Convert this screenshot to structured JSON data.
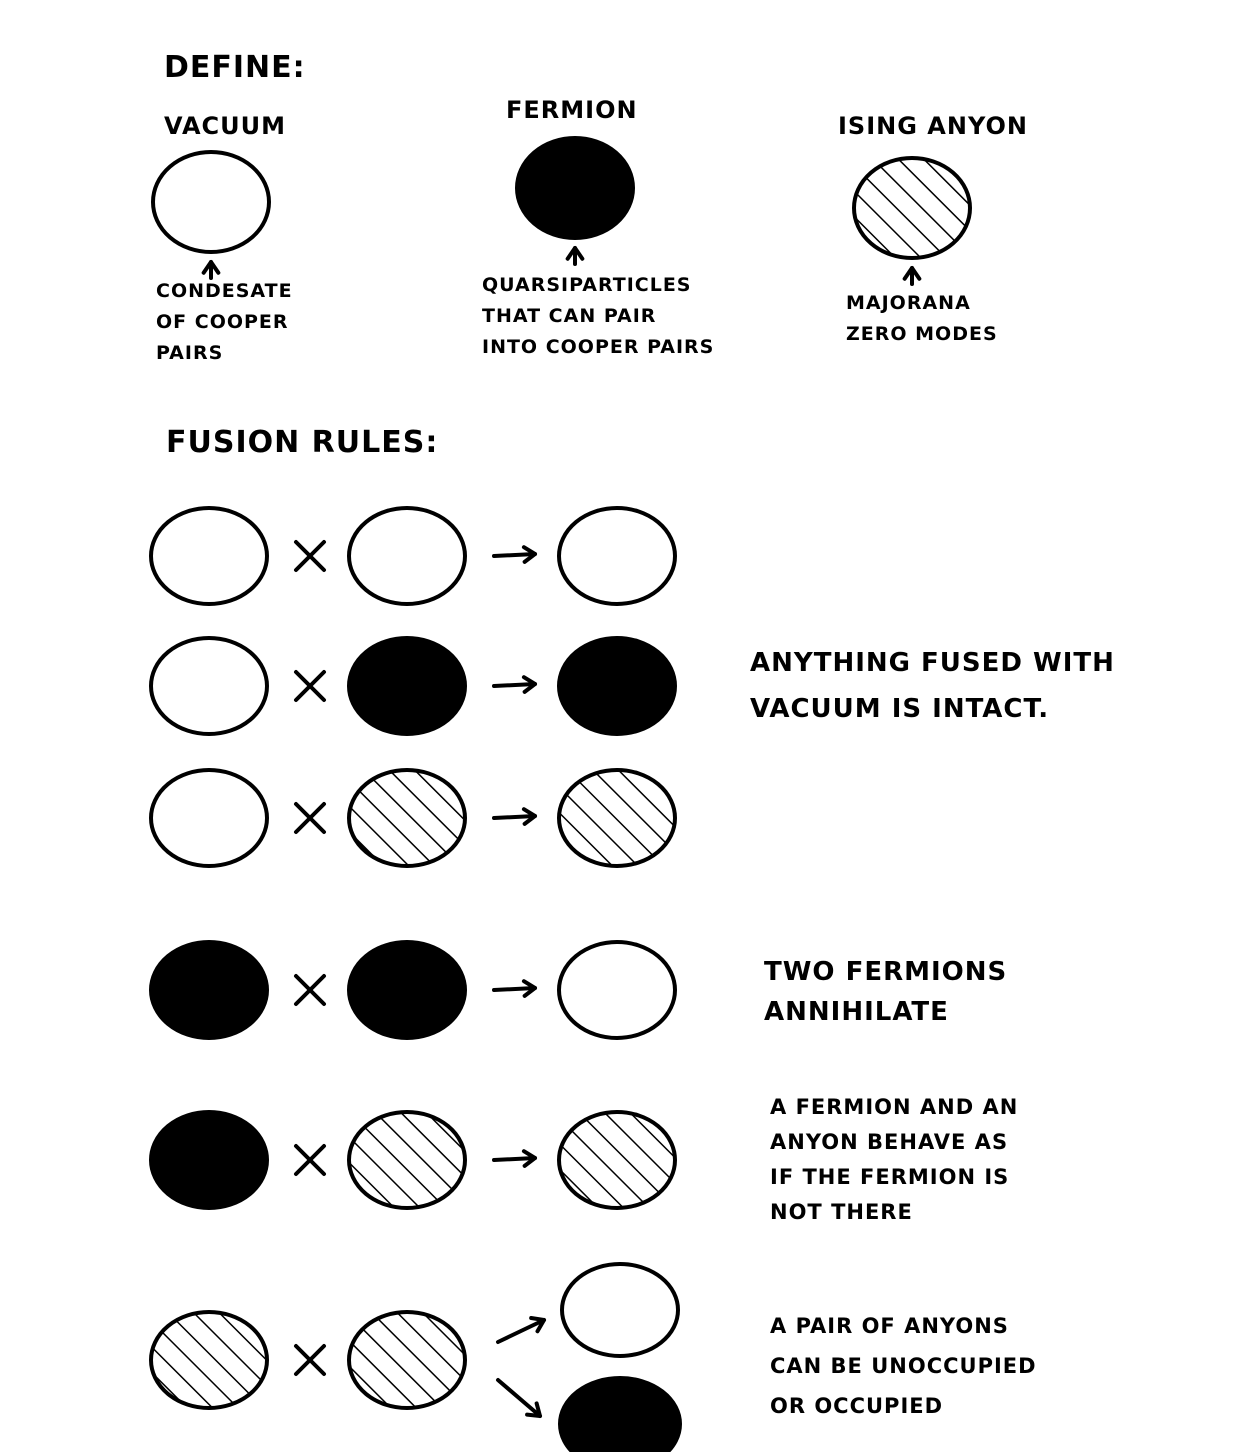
{
  "define": {
    "heading": "DEFINE:",
    "particles": [
      {
        "name": "VACUUM",
        "style": "empty",
        "caption": [
          "CONDESATE",
          "OF COOPER",
          "PAIRS"
        ]
      },
      {
        "name": "FERMION",
        "style": "filled",
        "caption": [
          "QUARSIPARTICLES",
          "THAT CAN PAIR",
          "INTO COOPER PAIRS"
        ]
      },
      {
        "name": "ISING ANYON",
        "style": "hatched",
        "caption": [
          "MAJORANA",
          "ZERO MODES"
        ]
      }
    ]
  },
  "fusion": {
    "heading": "FUSION RULES:",
    "operator": "×",
    "rules": [
      {
        "a": "empty",
        "b": "empty",
        "results": [
          "empty"
        ]
      },
      {
        "a": "empty",
        "b": "filled",
        "results": [
          "filled"
        ]
      },
      {
        "a": "empty",
        "b": "hatched",
        "results": [
          "hatched"
        ]
      },
      {
        "a": "filled",
        "b": "filled",
        "results": [
          "empty"
        ]
      },
      {
        "a": "filled",
        "b": "hatched",
        "results": [
          "hatched"
        ]
      },
      {
        "a": "hatched",
        "b": "hatched",
        "results": [
          "empty",
          "filled"
        ]
      }
    ],
    "notes": [
      [
        "ANYTHING FUSED WITH",
        "VACUUM IS INTACT."
      ],
      [
        "TWO FERMIONS",
        "ANNIHILATE"
      ],
      [
        "A FERMION AND AN",
        "ANYON BEHAVE AS",
        "IF THE FERMION IS",
        "NOT THERE"
      ],
      [
        "A PAIR OF ANYONS",
        "CAN BE UNOCCUPIED",
        "OR OCCUPIED"
      ]
    ]
  },
  "colors": {
    "ink": "#000000",
    "paper": "#ffffff"
  }
}
